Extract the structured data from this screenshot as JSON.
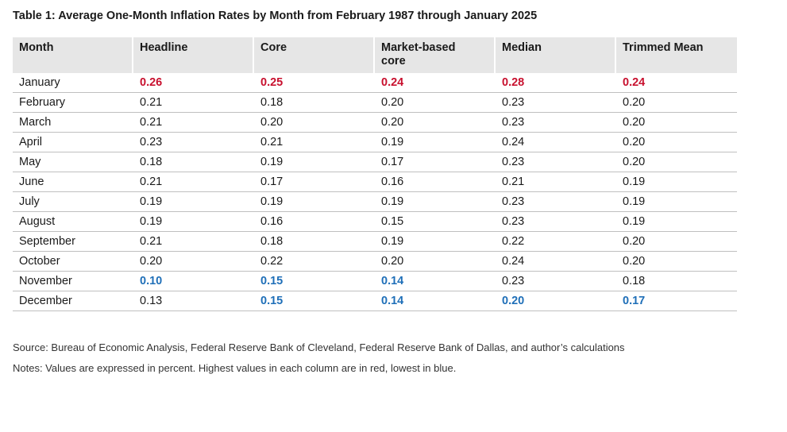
{
  "title": "Table 1: Average One-Month Inflation Rates by Month from February 1987 through January 2025",
  "columns": [
    "Month",
    "Headline",
    "Core",
    "Market-based core",
    "Median",
    "Trimmed Mean"
  ],
  "rows": [
    {
      "month": "January",
      "values": [
        "0.26",
        "0.25",
        "0.24",
        "0.28",
        "0.24"
      ],
      "flags": [
        "hi",
        "hi",
        "hi",
        "hi",
        "hi"
      ]
    },
    {
      "month": "February",
      "values": [
        "0.21",
        "0.18",
        "0.20",
        "0.23",
        "0.20"
      ],
      "flags": [
        "",
        "",
        "",
        "",
        ""
      ]
    },
    {
      "month": "March",
      "values": [
        "0.21",
        "0.20",
        "0.20",
        "0.23",
        "0.20"
      ],
      "flags": [
        "",
        "",
        "",
        "",
        ""
      ]
    },
    {
      "month": "April",
      "values": [
        "0.23",
        "0.21",
        "0.19",
        "0.24",
        "0.20"
      ],
      "flags": [
        "",
        "",
        "",
        "",
        ""
      ]
    },
    {
      "month": "May",
      "values": [
        "0.18",
        "0.19",
        "0.17",
        "0.23",
        "0.20"
      ],
      "flags": [
        "",
        "",
        "",
        "",
        ""
      ]
    },
    {
      "month": "June",
      "values": [
        "0.21",
        "0.17",
        "0.16",
        "0.21",
        "0.19"
      ],
      "flags": [
        "",
        "",
        "",
        "",
        ""
      ]
    },
    {
      "month": "July",
      "values": [
        "0.19",
        "0.19",
        "0.19",
        "0.23",
        "0.19"
      ],
      "flags": [
        "",
        "",
        "",
        "",
        ""
      ]
    },
    {
      "month": "August",
      "values": [
        "0.19",
        "0.16",
        "0.15",
        "0.23",
        "0.19"
      ],
      "flags": [
        "",
        "",
        "",
        "",
        ""
      ]
    },
    {
      "month": "September",
      "values": [
        "0.21",
        "0.18",
        "0.19",
        "0.22",
        "0.20"
      ],
      "flags": [
        "",
        "",
        "",
        "",
        ""
      ]
    },
    {
      "month": "October",
      "values": [
        "0.20",
        "0.22",
        "0.20",
        "0.24",
        "0.20"
      ],
      "flags": [
        "",
        "",
        "",
        "",
        ""
      ]
    },
    {
      "month": "November",
      "values": [
        "0.10",
        "0.15",
        "0.14",
        "0.23",
        "0.18"
      ],
      "flags": [
        "lo",
        "lo",
        "lo",
        "",
        ""
      ]
    },
    {
      "month": "December",
      "values": [
        "0.13",
        "0.15",
        "0.14",
        "0.20",
        "0.17"
      ],
      "flags": [
        "",
        "lo",
        "lo",
        "lo",
        "lo"
      ]
    }
  ],
  "source": "Source: Bureau of Economic Analysis, Federal Reserve Bank of Cleveland, Federal Reserve Bank of Dallas, and author’s calculations",
  "notes": "Notes: Values are expressed in percent. Highest values in each column are in red, lowest in blue.",
  "colors": {
    "highest": "#c8102e",
    "lowest": "#1f6fb8",
    "header_bg": "#e6e6e6"
  }
}
